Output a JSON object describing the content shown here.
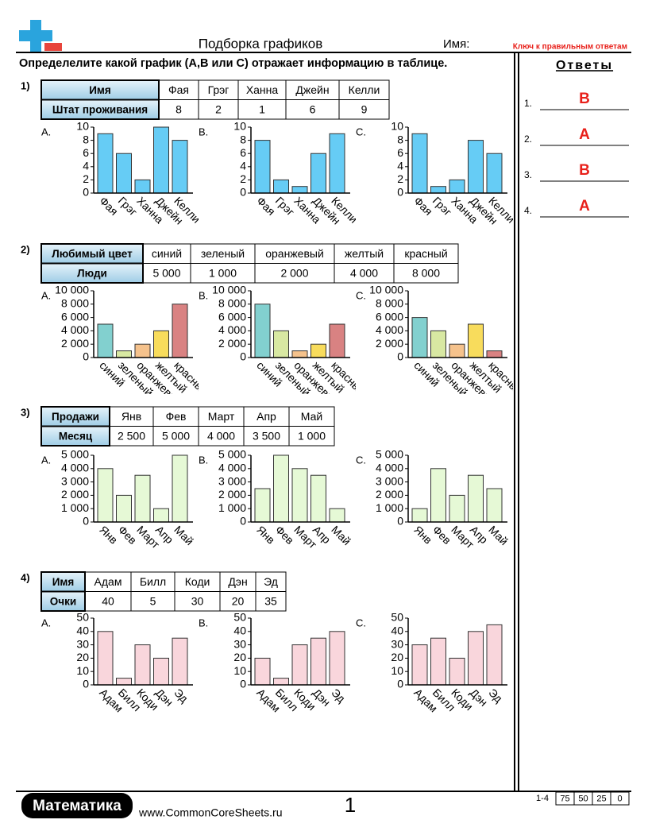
{
  "header": {
    "title": "Подборка графиков",
    "name_label": "Имя:",
    "key_label": "Ключ к правильным ответам"
  },
  "instruction": "Определелите какой график (A,B или C) отражает информацию в таблице.",
  "answers_title": "Ответы",
  "answers": [
    {
      "number": "1.",
      "answer": "B"
    },
    {
      "number": "2.",
      "answer": "A"
    },
    {
      "number": "3.",
      "answer": "B"
    },
    {
      "number": "4.",
      "answer": "A"
    }
  ],
  "problems": [
    {
      "number": "1)",
      "table": {
        "row_headers": [
          "Имя",
          "Штат проживания"
        ],
        "columns": [
          "Фая",
          "Грэг",
          "Ханна",
          "Джейн",
          "Келли"
        ],
        "values": [
          "8",
          "2",
          "1",
          "6",
          "9"
        ]
      },
      "charts": [
        {
          "label": "A.",
          "chart_data": {
            "type": "bar",
            "categories": [
              "Фая",
              "Грэг",
              "Ханна",
              "Джейн",
              "Келли"
            ],
            "values": [
              9,
              6,
              2,
              10,
              8
            ],
            "color": "#66ccf5",
            "ylim": [
              0,
              10
            ],
            "yticks": [
              0,
              2,
              4,
              6,
              8,
              10
            ]
          }
        },
        {
          "label": "B.",
          "chart_data": {
            "type": "bar",
            "categories": [
              "Фая",
              "Грэг",
              "Ханна",
              "Джейн",
              "Келли"
            ],
            "values": [
              8,
              2,
              1,
              6,
              9
            ],
            "color": "#66ccf5",
            "ylim": [
              0,
              10
            ],
            "yticks": [
              0,
              2,
              4,
              6,
              8,
              10
            ]
          }
        },
        {
          "label": "C.",
          "chart_data": {
            "type": "bar",
            "categories": [
              "Фая",
              "Грэг",
              "Ханна",
              "Джейн",
              "Келли"
            ],
            "values": [
              9,
              1,
              2,
              8,
              6
            ],
            "color": "#66ccf5",
            "ylim": [
              0,
              10
            ],
            "yticks": [
              0,
              2,
              4,
              6,
              8,
              10
            ]
          }
        }
      ]
    },
    {
      "number": "2)",
      "table": {
        "row_headers": [
          "Любимый цвет",
          "Люди"
        ],
        "columns": [
          "синий",
          "зеленый",
          "оранжевый",
          "желтый",
          "красный"
        ],
        "values": [
          "5 000",
          "1 000",
          "2 000",
          "4 000",
          "8 000"
        ]
      },
      "charts": [
        {
          "label": "A.",
          "chart_data": {
            "type": "bar",
            "categories": [
              "синий",
              "зеленый",
              "оранжевый",
              "желтый",
              "красный"
            ],
            "values": [
              5000,
              1000,
              2000,
              4000,
              8000
            ],
            "colors": [
              "#82d0cf",
              "#d8e8a2",
              "#f5c28c",
              "#f8dc5c",
              "#d98282"
            ],
            "ylim": [
              0,
              10000
            ],
            "yticks": [
              0,
              {
                "value": 2000,
                "label": "2 000"
              },
              {
                "value": 4000,
                "label": "4 000"
              },
              {
                "value": 6000,
                "label": "6 000"
              },
              {
                "value": 8000,
                "label": "8 000"
              },
              {
                "value": 10000,
                "label": "10 000"
              }
            ]
          }
        },
        {
          "label": "B.",
          "chart_data": {
            "type": "bar",
            "categories": [
              "синий",
              "зеленый",
              "оранжевый",
              "желтый",
              "красный"
            ],
            "values": [
              8000,
              4000,
              1000,
              2000,
              5000
            ],
            "colors": [
              "#82d0cf",
              "#d8e8a2",
              "#f5c28c",
              "#f8dc5c",
              "#d98282"
            ],
            "ylim": [
              0,
              10000
            ],
            "yticks": [
              0,
              {
                "value": 2000,
                "label": "2 000"
              },
              {
                "value": 4000,
                "label": "4 000"
              },
              {
                "value": 6000,
                "label": "6 000"
              },
              {
                "value": 8000,
                "label": "8 000"
              },
              {
                "value": 10000,
                "label": "10 000"
              }
            ]
          }
        },
        {
          "label": "C.",
          "chart_data": {
            "type": "bar",
            "categories": [
              "синий",
              "зеленый",
              "оранжевый",
              "желтый",
              "красный"
            ],
            "values": [
              6000,
              4000,
              2000,
              5000,
              1000
            ],
            "colors": [
              "#82d0cf",
              "#d8e8a2",
              "#f5c28c",
              "#f8dc5c",
              "#d98282"
            ],
            "ylim": [
              0,
              10000
            ],
            "yticks": [
              0,
              {
                "value": 2000,
                "label": "2 000"
              },
              {
                "value": 4000,
                "label": "4 000"
              },
              {
                "value": 6000,
                "label": "6 000"
              },
              {
                "value": 8000,
                "label": "8 000"
              },
              {
                "value": 10000,
                "label": "10 000"
              }
            ]
          }
        }
      ]
    },
    {
      "number": "3)",
      "table": {
        "row_headers": [
          "Продажи",
          "Месяц"
        ],
        "columns": [
          "Янв",
          "Фев",
          "Март",
          "Апр",
          "Май"
        ],
        "values": [
          "2 500",
          "5 000",
          "4 000",
          "3 500",
          "1 000"
        ]
      },
      "charts": [
        {
          "label": "A.",
          "chart_data": {
            "type": "bar",
            "categories": [
              "Янв",
              "Фев",
              "Март",
              "Апр",
              "Май"
            ],
            "values": [
              4000,
              2000,
              3500,
              1000,
              5000
            ],
            "color": "#e6f9d6",
            "ylim": [
              0,
              5000
            ],
            "yticks": [
              0,
              {
                "value": 1000,
                "label": "1 000"
              },
              {
                "value": 2000,
                "label": "2 000"
              },
              {
                "value": 3000,
                "label": "3 000"
              },
              {
                "value": 4000,
                "label": "4 000"
              },
              {
                "value": 5000,
                "label": "5 000"
              }
            ]
          }
        },
        {
          "label": "B.",
          "chart_data": {
            "type": "bar",
            "categories": [
              "Янв",
              "Фев",
              "Март",
              "Апр",
              "Май"
            ],
            "values": [
              2500,
              5000,
              4000,
              3500,
              1000
            ],
            "color": "#e6f9d6",
            "ylim": [
              0,
              5000
            ],
            "yticks": [
              0,
              {
                "value": 1000,
                "label": "1 000"
              },
              {
                "value": 2000,
                "label": "2 000"
              },
              {
                "value": 3000,
                "label": "3 000"
              },
              {
                "value": 4000,
                "label": "4 000"
              },
              {
                "value": 5000,
                "label": "5 000"
              }
            ]
          }
        },
        {
          "label": "C.",
          "chart_data": {
            "type": "bar",
            "categories": [
              "Янв",
              "Фев",
              "Март",
              "Апр",
              "Май"
            ],
            "values": [
              1000,
              4000,
              2000,
              3500,
              2500
            ],
            "color": "#e6f9d6",
            "ylim": [
              0,
              5000
            ],
            "yticks": [
              0,
              {
                "value": 1000,
                "label": "1 000"
              },
              {
                "value": 2000,
                "label": "2 000"
              },
              {
                "value": 3000,
                "label": "3 000"
              },
              {
                "value": 4000,
                "label": "4 000"
              },
              {
                "value": 5000,
                "label": "5 000"
              }
            ]
          }
        }
      ]
    },
    {
      "number": "4)",
      "table": {
        "row_headers": [
          "Имя",
          "Очки"
        ],
        "columns": [
          "Адам",
          "Билл",
          "Коди",
          "Дэн",
          "Эд"
        ],
        "values": [
          "40",
          "5",
          "30",
          "20",
          "35"
        ]
      },
      "charts": [
        {
          "label": "A.",
          "chart_data": {
            "type": "bar",
            "categories": [
              "Адам",
              "Билл",
              "Коди",
              "Дэн",
              "Эд"
            ],
            "values": [
              40,
              5,
              30,
              20,
              35
            ],
            "color": "#f9d6dc",
            "ylim": [
              0,
              50
            ],
            "yticks": [
              0,
              10,
              20,
              30,
              40,
              50
            ]
          }
        },
        {
          "label": "B.",
          "chart_data": {
            "type": "bar",
            "categories": [
              "Адам",
              "Билл",
              "Коди",
              "Дэн",
              "Эд"
            ],
            "values": [
              20,
              5,
              30,
              35,
              40
            ],
            "color": "#f9d6dc",
            "ylim": [
              0,
              50
            ],
            "yticks": [
              0,
              10,
              20,
              30,
              40,
              50
            ]
          }
        },
        {
          "label": "C.",
          "chart_data": {
            "type": "bar",
            "categories": [
              "Адам",
              "Билл",
              "Коди",
              "Дэн",
              "Эд"
            ],
            "values": [
              30,
              35,
              20,
              40,
              45
            ],
            "color": "#f9d6dc",
            "ylim": [
              0,
              50
            ],
            "yticks": [
              0,
              10,
              20,
              30,
              40,
              50
            ]
          }
        }
      ]
    }
  ],
  "footer": {
    "brand": "Математика",
    "url": "www.CommonCoreSheets.ru",
    "page": "1",
    "range": "1-4",
    "scores": [
      "75",
      "50",
      "25",
      "0"
    ]
  }
}
